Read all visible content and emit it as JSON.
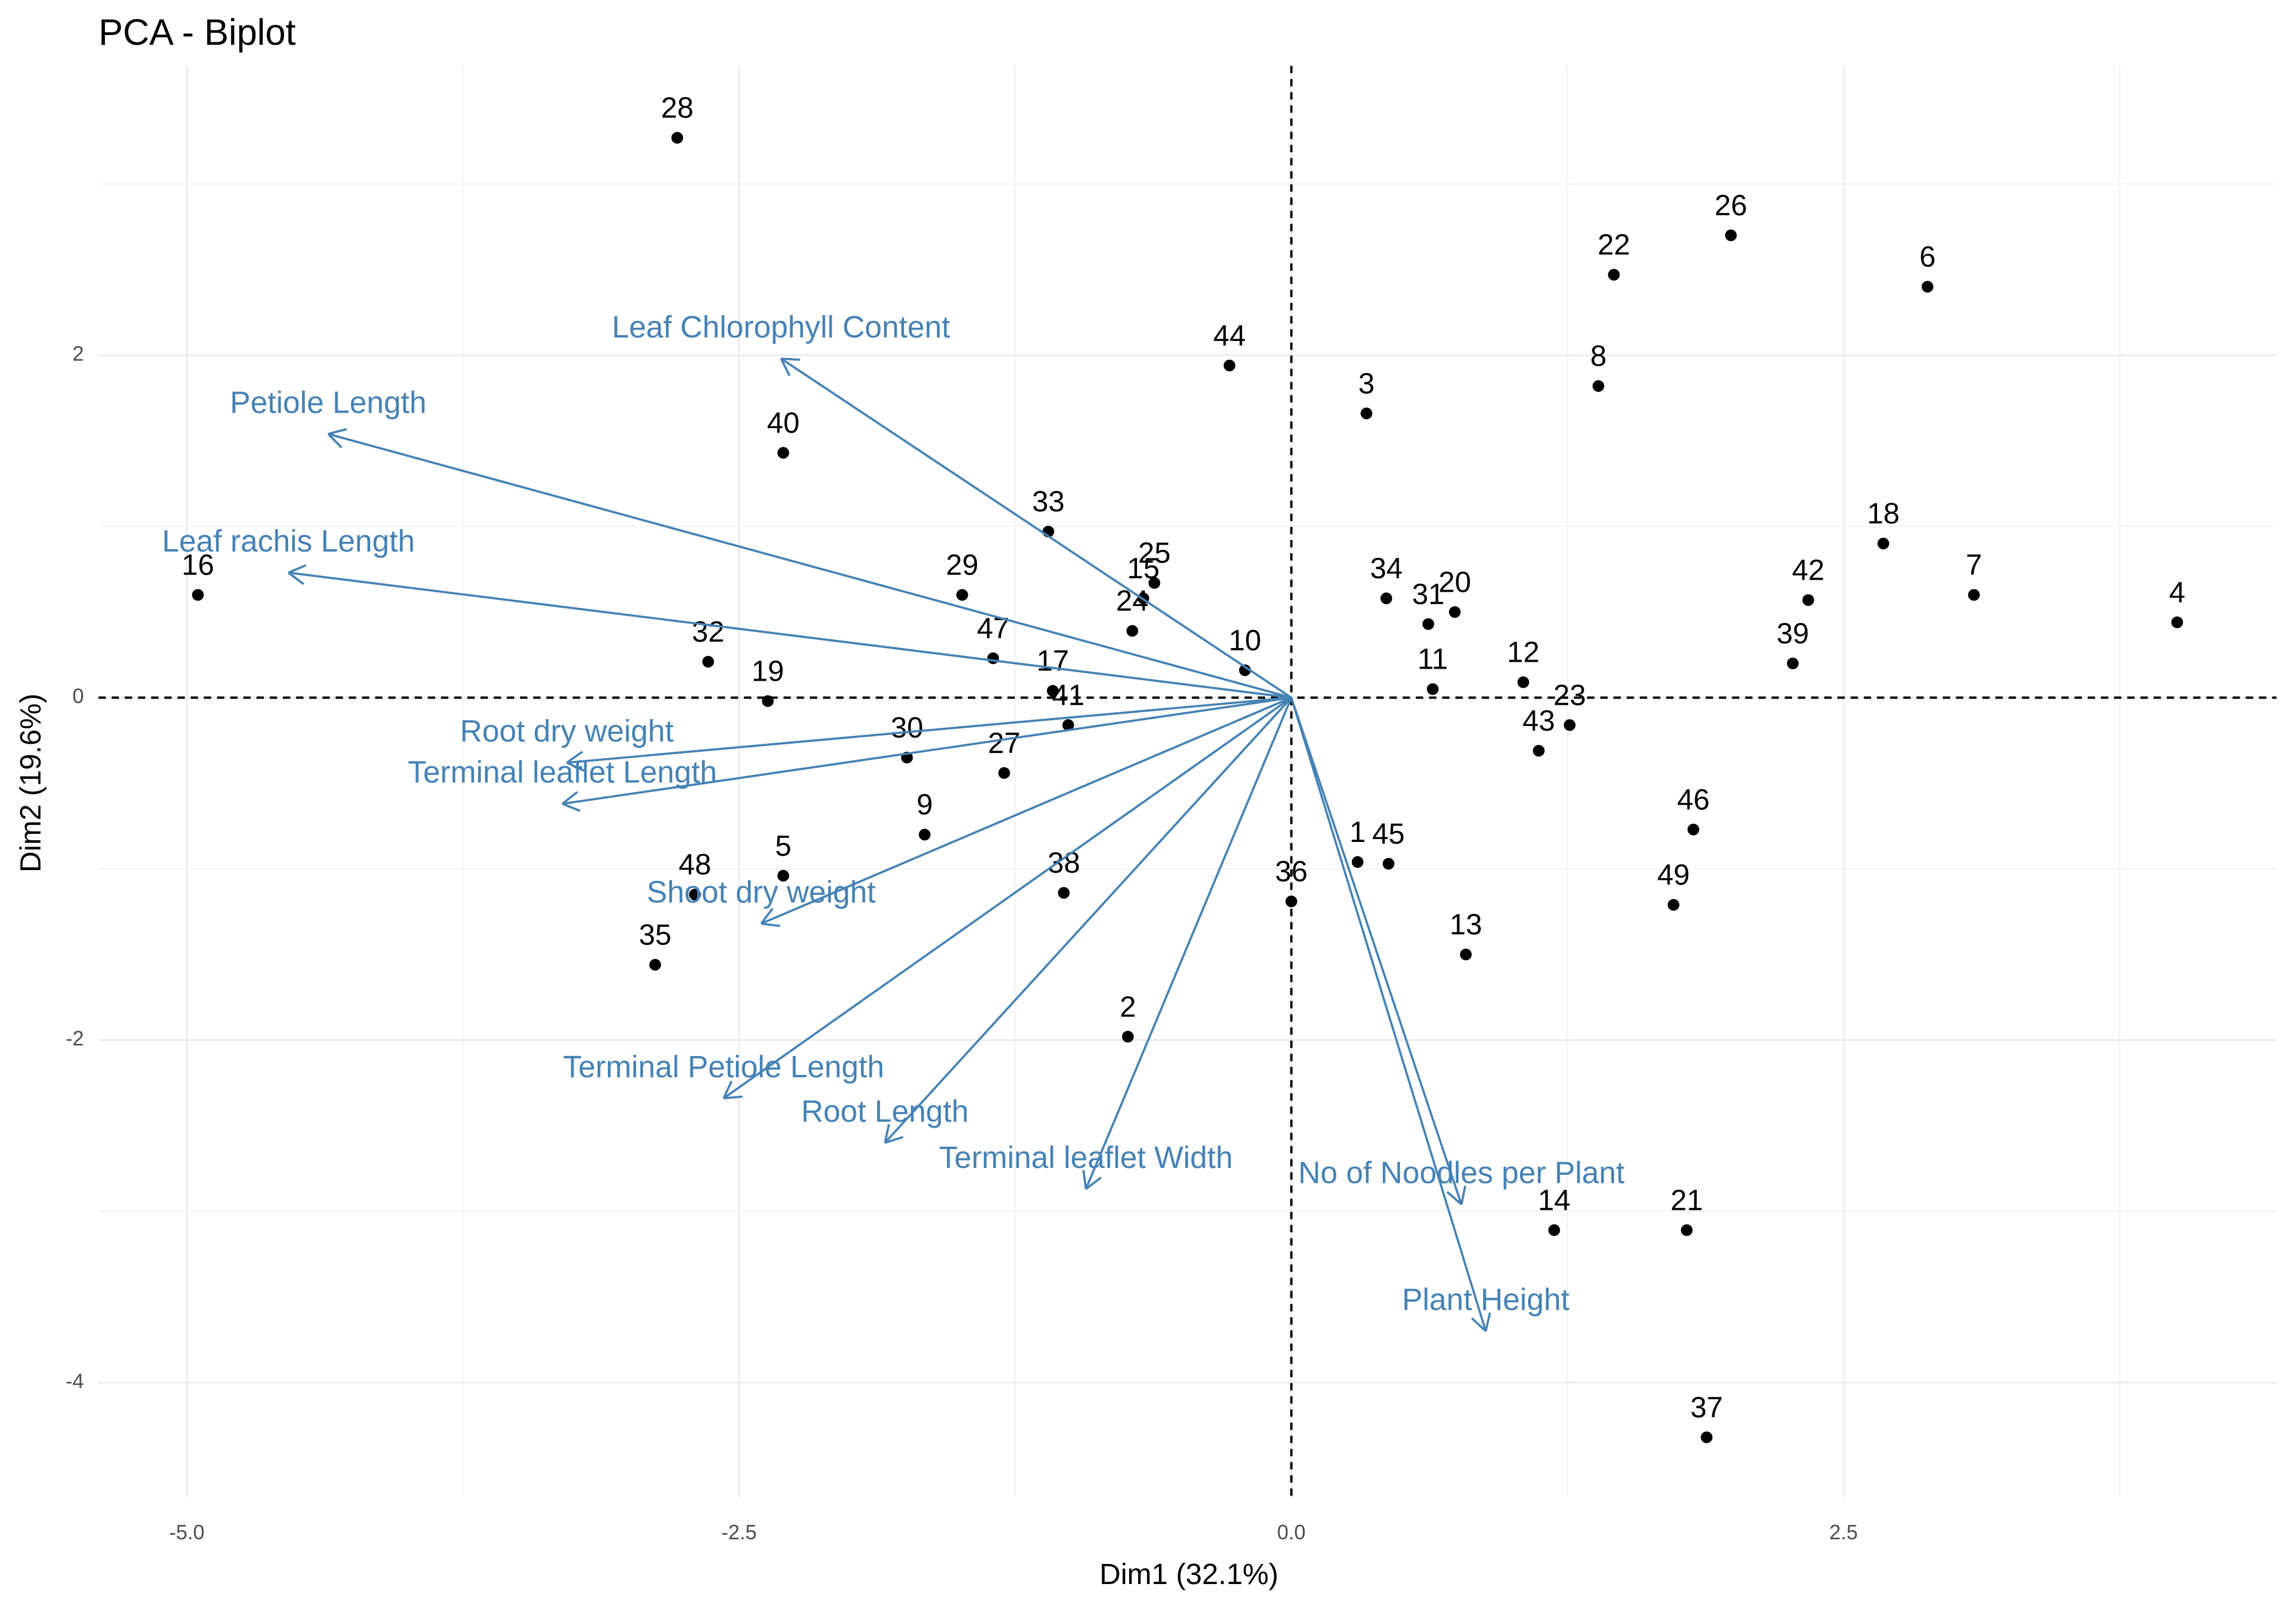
{
  "chart_data": {
    "type": "biplot",
    "title": "PCA - Biplot",
    "x_label": "Dim1 (32.1%)",
    "y_label": "Dim2 (19.6%)",
    "xlim": [
      -5.4,
      4.46
    ],
    "ylim": [
      -4.67,
      3.69
    ],
    "xticks": [
      {
        "value": -5,
        "label": "-5.0"
      },
      {
        "value": -2.5,
        "label": "-2.5"
      },
      {
        "value": 0,
        "label": "0.0"
      },
      {
        "value": 2.5,
        "label": "2.5"
      }
    ],
    "yticks": [
      -4,
      -2,
      0,
      2
    ],
    "grid": true,
    "individuals": {
      "color": "#000000",
      "labels": [
        "1",
        "2",
        "3",
        "4",
        "5",
        "6",
        "7",
        "8",
        "9",
        "10",
        "11",
        "12",
        "13",
        "14",
        "15",
        "16",
        "17",
        "18",
        "19",
        "20",
        "21",
        "22",
        "23",
        "24",
        "25",
        "26",
        "27",
        "28",
        "29",
        "30",
        "31",
        "32",
        "33",
        "34",
        "35",
        "36",
        "37",
        "38",
        "39",
        "40",
        "41",
        "42",
        "43",
        "44",
        "45",
        "46",
        "47",
        "48",
        "49"
      ],
      "x": [
        0.3,
        -0.74,
        0.34,
        4.01,
        -2.3,
        2.88,
        3.09,
        1.39,
        -1.66,
        -0.21,
        0.64,
        1.05,
        0.79,
        1.19,
        -0.67,
        -4.95,
        -1.08,
        2.68,
        -2.37,
        0.74,
        1.79,
        1.46,
        1.26,
        -0.72,
        -0.62,
        1.99,
        -1.3,
        -2.78,
        -1.49,
        -1.74,
        0.62,
        -2.64,
        -1.1,
        0.43,
        -2.88,
        0.0,
        1.88,
        -1.03,
        2.27,
        -2.3,
        -1.01,
        2.34,
        1.12,
        -0.28,
        0.44,
        1.82,
        -1.35,
        -2.7,
        1.73
      ],
      "y": [
        -0.96,
        -1.98,
        1.66,
        0.44,
        -1.04,
        2.4,
        0.6,
        1.82,
        -0.8,
        0.16,
        0.05,
        0.09,
        -1.5,
        -3.11,
        0.58,
        0.6,
        0.04,
        0.9,
        -0.02,
        0.5,
        -3.11,
        2.47,
        -0.16,
        0.39,
        0.67,
        2.7,
        -0.44,
        3.27,
        0.6,
        -0.35,
        0.43,
        0.21,
        0.97,
        0.58,
        -1.56,
        -1.19,
        -4.32,
        -1.14,
        0.2,
        1.43,
        -0.16,
        0.57,
        -0.31,
        1.94,
        -0.97,
        -0.77,
        0.23,
        -1.15,
        -1.21
      ]
    },
    "variables": {
      "color": "#4682b4",
      "labels": [
        "Leaf Chlorophyll Content",
        "Petiole Length",
        "Leaf rachis Length",
        "Root dry weight",
        "Terminal leaflet Length",
        "Shoot dry weight",
        "Terminal Petiole Length",
        "Root Length",
        "Terminal leaflet Width",
        "No of Noodles per Plant",
        "Plant Height"
      ],
      "x": [
        -2.31,
        -4.36,
        -4.54,
        -3.28,
        -3.3,
        -2.4,
        -2.57,
        -1.84,
        -0.93,
        0.77,
        0.88
      ],
      "y": [
        1.98,
        1.54,
        0.73,
        -0.38,
        -0.62,
        -1.32,
        -2.34,
        -2.6,
        -2.87,
        -2.96,
        -3.7
      ]
    }
  }
}
